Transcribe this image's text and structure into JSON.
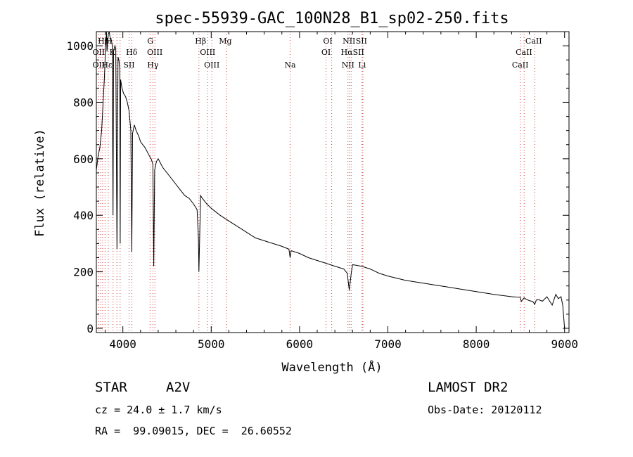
{
  "chart_data": {
    "type": "line",
    "title": "spec-55939-GAC_100N28_B1_sp02-250.fits",
    "xlabel": "Wavelength (Å)",
    "ylabel": "Flux (relative)",
    "xlim": [
      3700,
      9050
    ],
    "ylim": [
      -15,
      1050
    ],
    "xticks": [
      4000,
      5000,
      6000,
      7000,
      8000,
      9000
    ],
    "yticks": [
      0,
      200,
      400,
      600,
      800,
      1000
    ],
    "grid": false,
    "series": [
      {
        "x": [
          3700,
          3720,
          3740,
          3760,
          3770,
          3780,
          3790,
          3798,
          3805,
          3815,
          3820,
          3835,
          3845,
          3855,
          3870,
          3880,
          3889,
          3895,
          3910,
          3920,
          3933,
          3945,
          3955,
          3965,
          3970,
          3975,
          3990,
          4010,
          4030,
          4050,
          4070,
          4090,
          4101,
          4110,
          4130,
          4150,
          4180,
          4200,
          4250,
          4300,
          4320,
          4340,
          4350,
          4360,
          4380,
          4400,
          4450,
          4500,
          4550,
          4600,
          4650,
          4700,
          4750,
          4800,
          4840,
          4855,
          4861,
          4868,
          4880,
          4900,
          4950,
          5000,
          5100,
          5200,
          5300,
          5400,
          5500,
          5600,
          5700,
          5800,
          5880,
          5893,
          5905,
          6000,
          6100,
          6200,
          6300,
          6400,
          6500,
          6540,
          6563,
          6585,
          6600,
          6700,
          6800,
          6900,
          7000,
          7200,
          7400,
          7600,
          7800,
          8000,
          8200,
          8400,
          8498,
          8510,
          8542,
          8560,
          8600,
          8640,
          8662,
          8680,
          8700,
          8750,
          8800,
          8860,
          8900,
          8930,
          8960,
          8980,
          9000
        ],
        "values": [
          560,
          610,
          640,
          700,
          760,
          820,
          880,
          940,
          1000,
          1050,
          980,
          1040,
          1050,
          1030,
          1020,
          1000,
          400,
          980,
          1000,
          990,
          280,
          960,
          950,
          920,
          300,
          880,
          850,
          830,
          820,
          800,
          770,
          700,
          270,
          690,
          720,
          700,
          680,
          660,
          640,
          610,
          600,
          580,
          220,
          560,
          590,
          600,
          570,
          550,
          530,
          510,
          490,
          470,
          460,
          440,
          420,
          320,
          200,
          300,
          470,
          460,
          440,
          425,
          400,
          380,
          360,
          340,
          320,
          310,
          300,
          290,
          280,
          250,
          275,
          265,
          250,
          240,
          230,
          220,
          210,
          195,
          135,
          195,
          225,
          220,
          210,
          195,
          185,
          170,
          160,
          150,
          140,
          130,
          120,
          112,
          110,
          95,
          108,
          104,
          98,
          95,
          85,
          100,
          102,
          96,
          112,
          82,
          120,
          105,
          112,
          80,
          0
        ]
      }
    ],
    "lines": {
      "row1": [
        {
          "label": "Hβ",
          "x": 3780
        },
        {
          "label": "H",
          "x": 3840
        },
        {
          "label": "G",
          "x": 4310
        },
        {
          "label": "Hβ",
          "x": 4880
        },
        {
          "label": "Mg",
          "x": 5160
        },
        {
          "label": "OI",
          "x": 6320
        },
        {
          "label": "NII",
          "x": 6560
        },
        {
          "label": "SII",
          "x": 6700
        },
        {
          "label": "CaII",
          "x": 8650
        }
      ],
      "row2": [
        {
          "label": "OII",
          "x": 3727
        },
        {
          "label": "K",
          "x": 3880
        },
        {
          "label": "Hδ",
          "x": 4100
        },
        {
          "label": "OIII",
          "x": 4362
        },
        {
          "label": "OIII",
          "x": 4960
        },
        {
          "label": "OI",
          "x": 6300
        },
        {
          "label": "HαSII",
          "x": 6600
        },
        {
          "label": "CaII",
          "x": 8540
        }
      ],
      "row3": [
        {
          "label": "OII",
          "x": 3727
        },
        {
          "label": "Hε",
          "x": 3820
        },
        {
          "label": "SII",
          "x": 4070
        },
        {
          "label": "Hγ",
          "x": 4340
        },
        {
          "label": "OIII",
          "x": 5007
        },
        {
          "label": "Na",
          "x": 5893
        },
        {
          "label": "NII",
          "x": 6548
        },
        {
          "label": "Li",
          "x": 6708
        },
        {
          "label": "CaII",
          "x": 8498
        }
      ],
      "markers": [
        3727,
        3750,
        3771,
        3798,
        3835,
        3889,
        3933,
        3969,
        4070,
        4102,
        4308,
        4340,
        4363,
        4861,
        4959,
        5007,
        5175,
        5893,
        6300,
        6364,
        6548,
        6563,
        6584,
        6708,
        6717,
        8498,
        8542,
        8662
      ]
    }
  },
  "info": {
    "object_type": "STAR",
    "spectral_class": "A2V",
    "cz": "cz = 24.0 ± 1.7 km/s",
    "coords": "RA =  99.09015, DEC =  26.60552",
    "survey": "LAMOST DR2",
    "obs_date": "Obs-Date: 20120112"
  }
}
